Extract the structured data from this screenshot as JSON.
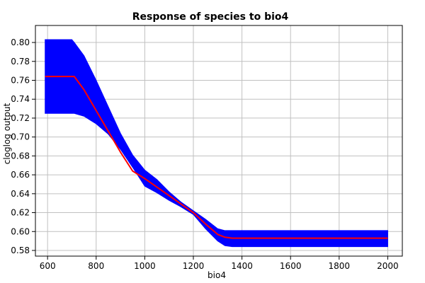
{
  "chart_data": {
    "type": "area",
    "title": "Response of species to bio4",
    "xlabel": "bio4",
    "ylabel": "cloglog output",
    "xlim": [
      550,
      2060
    ],
    "ylim": [
      0.574,
      0.818
    ],
    "xticks": [
      600,
      800,
      1000,
      1200,
      1400,
      1600,
      1800,
      2000
    ],
    "yticks": [
      0.58,
      0.6,
      0.62,
      0.64,
      0.66,
      0.68,
      0.7,
      0.72,
      0.74,
      0.76,
      0.78,
      0.8
    ],
    "grid": true,
    "colors": {
      "band": "#0000ff",
      "mean_line": "#ff0000",
      "grid": "#c0c0c0",
      "axis": "#000000"
    },
    "series": [
      {
        "kind": "mean_line",
        "x": [
          590,
          600,
          650,
          700,
          710,
          750,
          800,
          850,
          900,
          950,
          1000,
          1050,
          1100,
          1150,
          1200,
          1250,
          1300,
          1330,
          1360,
          1400,
          1600,
          1800,
          2000
        ],
        "y": [
          0.764,
          0.764,
          0.764,
          0.764,
          0.764,
          0.75,
          0.728,
          0.706,
          0.684,
          0.664,
          0.656,
          0.647,
          0.638,
          0.629,
          0.62,
          0.608,
          0.597,
          0.594,
          0.593,
          0.593,
          0.593,
          0.593,
          0.593
        ]
      },
      {
        "kind": "band_upper",
        "x": [
          590,
          600,
          650,
          700,
          710,
          750,
          800,
          850,
          900,
          950,
          1000,
          1050,
          1100,
          1150,
          1200,
          1250,
          1300,
          1330,
          1360,
          1400,
          1600,
          1800,
          2000
        ],
        "y": [
          0.803,
          0.803,
          0.803,
          0.803,
          0.8,
          0.786,
          0.76,
          0.732,
          0.704,
          0.681,
          0.665,
          0.655,
          0.642,
          0.631,
          0.622,
          0.613,
          0.603,
          0.601,
          0.601,
          0.601,
          0.601,
          0.601,
          0.601
        ]
      },
      {
        "kind": "band_lower",
        "x": [
          590,
          600,
          650,
          700,
          710,
          750,
          800,
          850,
          900,
          950,
          1000,
          1050,
          1100,
          1150,
          1200,
          1250,
          1300,
          1330,
          1360,
          1400,
          1600,
          1800,
          2000
        ],
        "y": [
          0.725,
          0.725,
          0.725,
          0.725,
          0.725,
          0.722,
          0.714,
          0.703,
          0.687,
          0.668,
          0.648,
          0.641,
          0.633,
          0.626,
          0.618,
          0.603,
          0.59,
          0.585,
          0.584,
          0.584,
          0.584,
          0.584,
          0.584
        ]
      }
    ]
  }
}
